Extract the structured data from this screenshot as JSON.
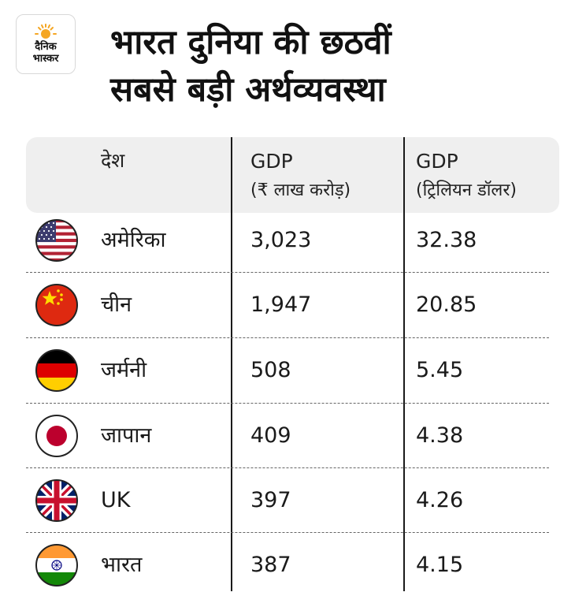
{
  "logo": {
    "line1": "दैनिक",
    "line2": "भास्कर"
  },
  "title": {
    "line1": "भारत दुनिया की छठवीं",
    "line2": "सबसे बड़ी अर्थव्यवस्था"
  },
  "table": {
    "headers": {
      "country": "देश",
      "gdp_inr": {
        "label": "GDP",
        "unit": "(₹ लाख करोड़)"
      },
      "gdp_usd": {
        "label": "GDP",
        "unit": "(ट्रिलियन डॉलर)"
      }
    },
    "rows": [
      {
        "country": "अमेरिका",
        "flag": "usa-flag-icon",
        "gdp_inr": "3,023",
        "gdp_usd": "32.38"
      },
      {
        "country": "चीन",
        "flag": "china-flag-icon",
        "gdp_inr": "1,947",
        "gdp_usd": "20.85"
      },
      {
        "country": "जर्मनी",
        "flag": "germany-flag-icon",
        "gdp_inr": "508",
        "gdp_usd": "5.45"
      },
      {
        "country": "जापान",
        "flag": "japan-flag-icon",
        "gdp_inr": "409",
        "gdp_usd": "4.38"
      },
      {
        "country": "UK",
        "flag": "uk-flag-icon",
        "gdp_inr": "397",
        "gdp_usd": "4.26"
      },
      {
        "country": "भारत",
        "flag": "india-flag-icon",
        "gdp_inr": "387",
        "gdp_usd": "4.15"
      }
    ]
  },
  "colors": {
    "header_bg": "#efefef",
    "logo_sun": "#f5a623",
    "divider": "#1a1a1a"
  }
}
